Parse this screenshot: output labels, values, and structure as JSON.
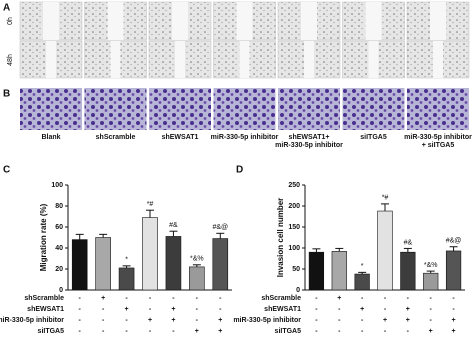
{
  "figure": {
    "panel_a": {
      "label": "A",
      "rows": [
        "0h",
        "48h"
      ]
    },
    "panel_b": {
      "label": "B",
      "captions": [
        [
          "Blank"
        ],
        [
          "shScramble"
        ],
        [
          "shEWSAT1"
        ],
        [
          "miR-330-5p inhibitor"
        ],
        [
          "shEWSAT1+",
          "miR-330-5p inhibitor"
        ],
        [
          "siITGA5"
        ],
        [
          "miR-330-5p inhibitor",
          "+ siITGA5"
        ]
      ]
    }
  },
  "chart_data": [
    {
      "type": "bar",
      "panel": "C",
      "y_label": "Migration rate (%)",
      "values": [
        48,
        50,
        21,
        69,
        51,
        22,
        49
      ],
      "errors": [
        5,
        3,
        2,
        7,
        5,
        2,
        5
      ],
      "annotations": [
        null,
        null,
        "*",
        "*#",
        "#&",
        "*&%",
        "#&@"
      ],
      "colors": [
        "#111111",
        "#a8a8a8",
        "#4a4a4a",
        "#e2e2e2",
        "#3c3c3c",
        "#9a9a9a",
        "#555555"
      ],
      "ylim": [
        0,
        100
      ],
      "yticks": [
        0,
        20,
        40,
        60,
        80,
        100
      ],
      "conditions": [
        {
          "name": "shScramble",
          "signs": [
            "-",
            "+",
            "-",
            "-",
            "-",
            "-",
            "-"
          ]
        },
        {
          "name": "shEWSAT1",
          "signs": [
            "-",
            "-",
            "+",
            "-",
            "+",
            "-",
            "-"
          ]
        },
        {
          "name": "miR-330-5p inhibitor",
          "signs": [
            "-",
            "-",
            "-",
            "+",
            "+",
            "-",
            "+"
          ]
        },
        {
          "name": "siITGA5",
          "signs": [
            "-",
            "-",
            "-",
            "-",
            "-",
            "+",
            "+"
          ]
        }
      ]
    },
    {
      "type": "bar",
      "panel": "D",
      "y_label": "Invasion cell number",
      "values": [
        90,
        92,
        38,
        188,
        90,
        40,
        93
      ],
      "errors": [
        8,
        7,
        4,
        17,
        9,
        5,
        10
      ],
      "annotations": [
        null,
        null,
        "*",
        "*#",
        "#&",
        "*&%",
        "#&@"
      ],
      "colors": [
        "#111111",
        "#a8a8a8",
        "#4a4a4a",
        "#e2e2e2",
        "#3c3c3c",
        "#9a9a9a",
        "#555555"
      ],
      "ylim": [
        0,
        250
      ],
      "yticks": [
        0,
        50,
        100,
        150,
        200,
        250
      ],
      "conditions": [
        {
          "name": "shScramble",
          "signs": [
            "-",
            "+",
            "-",
            "-",
            "-",
            "-",
            "-"
          ]
        },
        {
          "name": "shEWSAT1",
          "signs": [
            "-",
            "-",
            "+",
            "-",
            "+",
            "-",
            "-"
          ]
        },
        {
          "name": "miR-330-5p inhibitor",
          "signs": [
            "-",
            "-",
            "-",
            "+",
            "+",
            "-",
            "+"
          ]
        },
        {
          "name": "siITGA5",
          "signs": [
            "-",
            "-",
            "-",
            "-",
            "-",
            "+",
            "+"
          ]
        }
      ]
    }
  ]
}
